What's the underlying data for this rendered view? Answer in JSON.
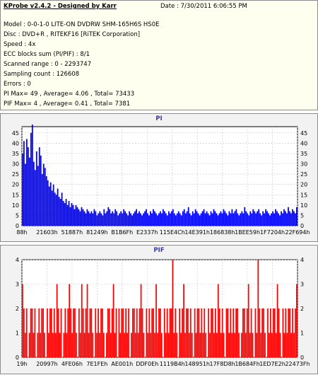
{
  "header": {
    "title": "KProbe v2.4.2 - Designed by Karr",
    "date": "Date : 7/30/2011 6:06:55 PM",
    "lines": [
      "Model : 0-0-1-0 LITE-ON DVDRW SHM-165H6S HS0E",
      "Disc : DVD+R , RITEKF16 [RiTEK Corporation]",
      "Speed : 4x",
      "ECC blocks sum (PI/PIF) : 8/1",
      "Scanned range : 0 - 2293747",
      "Sampling count : 126608",
      "Errors : 0",
      "PI Max= 49 , Average= 4.06 , Total= 73433",
      "PIF Max= 4 , Average= 0.41 , Total= 7381"
    ]
  },
  "colors": {
    "pi_series": "#0000ff",
    "pif_series": "#ff0000",
    "header_bg": "#fffff0",
    "panel_bg": "#f2f2f2",
    "plot_bg": "#ffffff",
    "title_color": "#3a3aa6"
  },
  "chart_data": [
    {
      "type": "bar",
      "title": "PI",
      "xlabel": "",
      "ylabel": "",
      "ylim": [
        0,
        48
      ],
      "yticks": [
        0,
        5,
        10,
        15,
        20,
        25,
        30,
        35,
        40,
        45
      ],
      "xtick_labels": [
        "88h",
        "21603h",
        "51887h",
        "81249h",
        "B1B6Fh",
        "E2337h",
        "115E4Ch",
        "14E391h",
        "186838h",
        "1BEE59h",
        "1F7204h",
        "22F694h"
      ],
      "grid": true,
      "series": [
        {
          "values": [
            35,
            41,
            30,
            42,
            38,
            33,
            45,
            49,
            31,
            27,
            36,
            29,
            38,
            34,
            25,
            30,
            28,
            24,
            22,
            19,
            21,
            17,
            20,
            16,
            15,
            18,
            14,
            13,
            16,
            12,
            11,
            13,
            10,
            12,
            9,
            11,
            10,
            8,
            10,
            9,
            8,
            7,
            9,
            8,
            7,
            6,
            8,
            7,
            6,
            7,
            6,
            8,
            7,
            5,
            6,
            7,
            6,
            5,
            8,
            6,
            7,
            9,
            8,
            6,
            7,
            6,
            8,
            7,
            5,
            6,
            7,
            6,
            8,
            7,
            6,
            5,
            7,
            6,
            5,
            6,
            7,
            8,
            6,
            7,
            6,
            5,
            6,
            7,
            8,
            6,
            5,
            7,
            6,
            8,
            7,
            6,
            5,
            6,
            7,
            6,
            8,
            7,
            6,
            5,
            7,
            6,
            7,
            8,
            6,
            5,
            6,
            7,
            6,
            5,
            7,
            8,
            6,
            7,
            9,
            6,
            5,
            7,
            6,
            8,
            7,
            6,
            5,
            6,
            7,
            8,
            6,
            7,
            6,
            5,
            7,
            6,
            8,
            7,
            6,
            5,
            6,
            7,
            6,
            8,
            7,
            6,
            5,
            7,
            6,
            8,
            6,
            7,
            8,
            6,
            5,
            6,
            7,
            6,
            9,
            7,
            6,
            5,
            7,
            6,
            8,
            7,
            6,
            7,
            8,
            6,
            5,
            7,
            6,
            8,
            7,
            6,
            5,
            6,
            7,
            6,
            8,
            7,
            6,
            5,
            7,
            6,
            8,
            7,
            6,
            9,
            7,
            6,
            8,
            7,
            6,
            9
          ]
        }
      ]
    },
    {
      "type": "bar",
      "title": "PIF",
      "xlabel": "",
      "ylabel": "",
      "ylim": [
        0,
        4
      ],
      "yticks": [
        0,
        1,
        2,
        3,
        4
      ],
      "xtick_labels": [
        "19h",
        "20997h",
        "4FE06h",
        "7E1FEh",
        "AE001h",
        "DDF0Eh",
        "1119B4h",
        "148951h",
        "17F8D8h",
        "1B684Fh",
        "1ED7E2h",
        "22473Fh"
      ],
      "grid": true,
      "series": [
        {
          "values": [
            3,
            2,
            1,
            2,
            0,
            1,
            2,
            2,
            1,
            2,
            0,
            1,
            2,
            1,
            2,
            2,
            1,
            0,
            2,
            1,
            2,
            2,
            1,
            2,
            1,
            3,
            2,
            1,
            2,
            0,
            1,
            2,
            1,
            2,
            3,
            2,
            1,
            2,
            2,
            1,
            0,
            2,
            1,
            3,
            2,
            1,
            2,
            3,
            1,
            2,
            2,
            1,
            0,
            2,
            1,
            2,
            1,
            2,
            2,
            1,
            0,
            1,
            2,
            2,
            1,
            2,
            3,
            1,
            2,
            0,
            2,
            1,
            2,
            2,
            1,
            2,
            1,
            2,
            0,
            1,
            2,
            2,
            1,
            2,
            1,
            2,
            3,
            2,
            1,
            0,
            2,
            1,
            2,
            1,
            2,
            2,
            1,
            3,
            1,
            2,
            2,
            1,
            0,
            2,
            1,
            2,
            1,
            2,
            2,
            4,
            1,
            2,
            1,
            0,
            2,
            1,
            2,
            3,
            1,
            2,
            2,
            1,
            2,
            1,
            0,
            2,
            1,
            2,
            2,
            1,
            2,
            1,
            2,
            1,
            0,
            2,
            1,
            2,
            2,
            1,
            2,
            1,
            3,
            2,
            1,
            2,
            1,
            0,
            2,
            2,
            1,
            2,
            1,
            2,
            1,
            2,
            2,
            1,
            0,
            1,
            2,
            2,
            1,
            2,
            3,
            1,
            2,
            1,
            0,
            2,
            1,
            4,
            2,
            1,
            2,
            2,
            1,
            0,
            2,
            1,
            2,
            1,
            2,
            2,
            1,
            3,
            2,
            1,
            0,
            2,
            1,
            2,
            1,
            2,
            2,
            1,
            2,
            1,
            2,
            3
          ]
        }
      ]
    }
  ]
}
